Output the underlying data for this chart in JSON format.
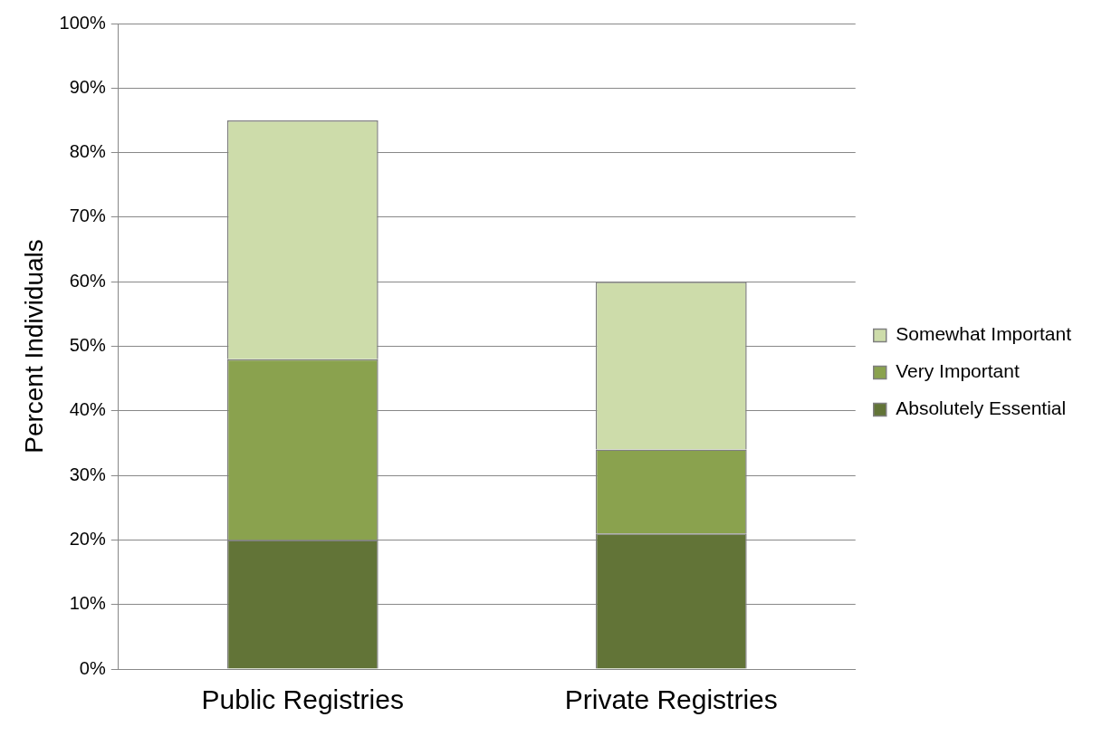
{
  "chart_data": {
    "type": "bar",
    "stacked": true,
    "ylabel": "Percent Individuals",
    "categories": [
      "Public Registries",
      "Private Registries"
    ],
    "series": [
      {
        "name": "Absolutely Essential",
        "color": "#627437",
        "values": [
          20,
          21
        ]
      },
      {
        "name": "Very Important",
        "color": "#8aa24e",
        "values": [
          28,
          13
        ]
      },
      {
        "name": "Somewhat Important",
        "color": "#cddcaa",
        "values": [
          37,
          26
        ]
      }
    ],
    "ylim": [
      0,
      100
    ],
    "yticks": [
      {
        "value": 0,
        "label": "0%"
      },
      {
        "value": 10,
        "label": "10%"
      },
      {
        "value": 20,
        "label": "20%"
      },
      {
        "value": 30,
        "label": "30%"
      },
      {
        "value": 40,
        "label": "40%"
      },
      {
        "value": 50,
        "label": "50%"
      },
      {
        "value": 60,
        "label": "60%"
      },
      {
        "value": 70,
        "label": "70%"
      },
      {
        "value": 80,
        "label": "80%"
      },
      {
        "value": 90,
        "label": "90%"
      },
      {
        "value": 100,
        "label": "100%"
      }
    ],
    "grid": "y",
    "legend": "right"
  }
}
